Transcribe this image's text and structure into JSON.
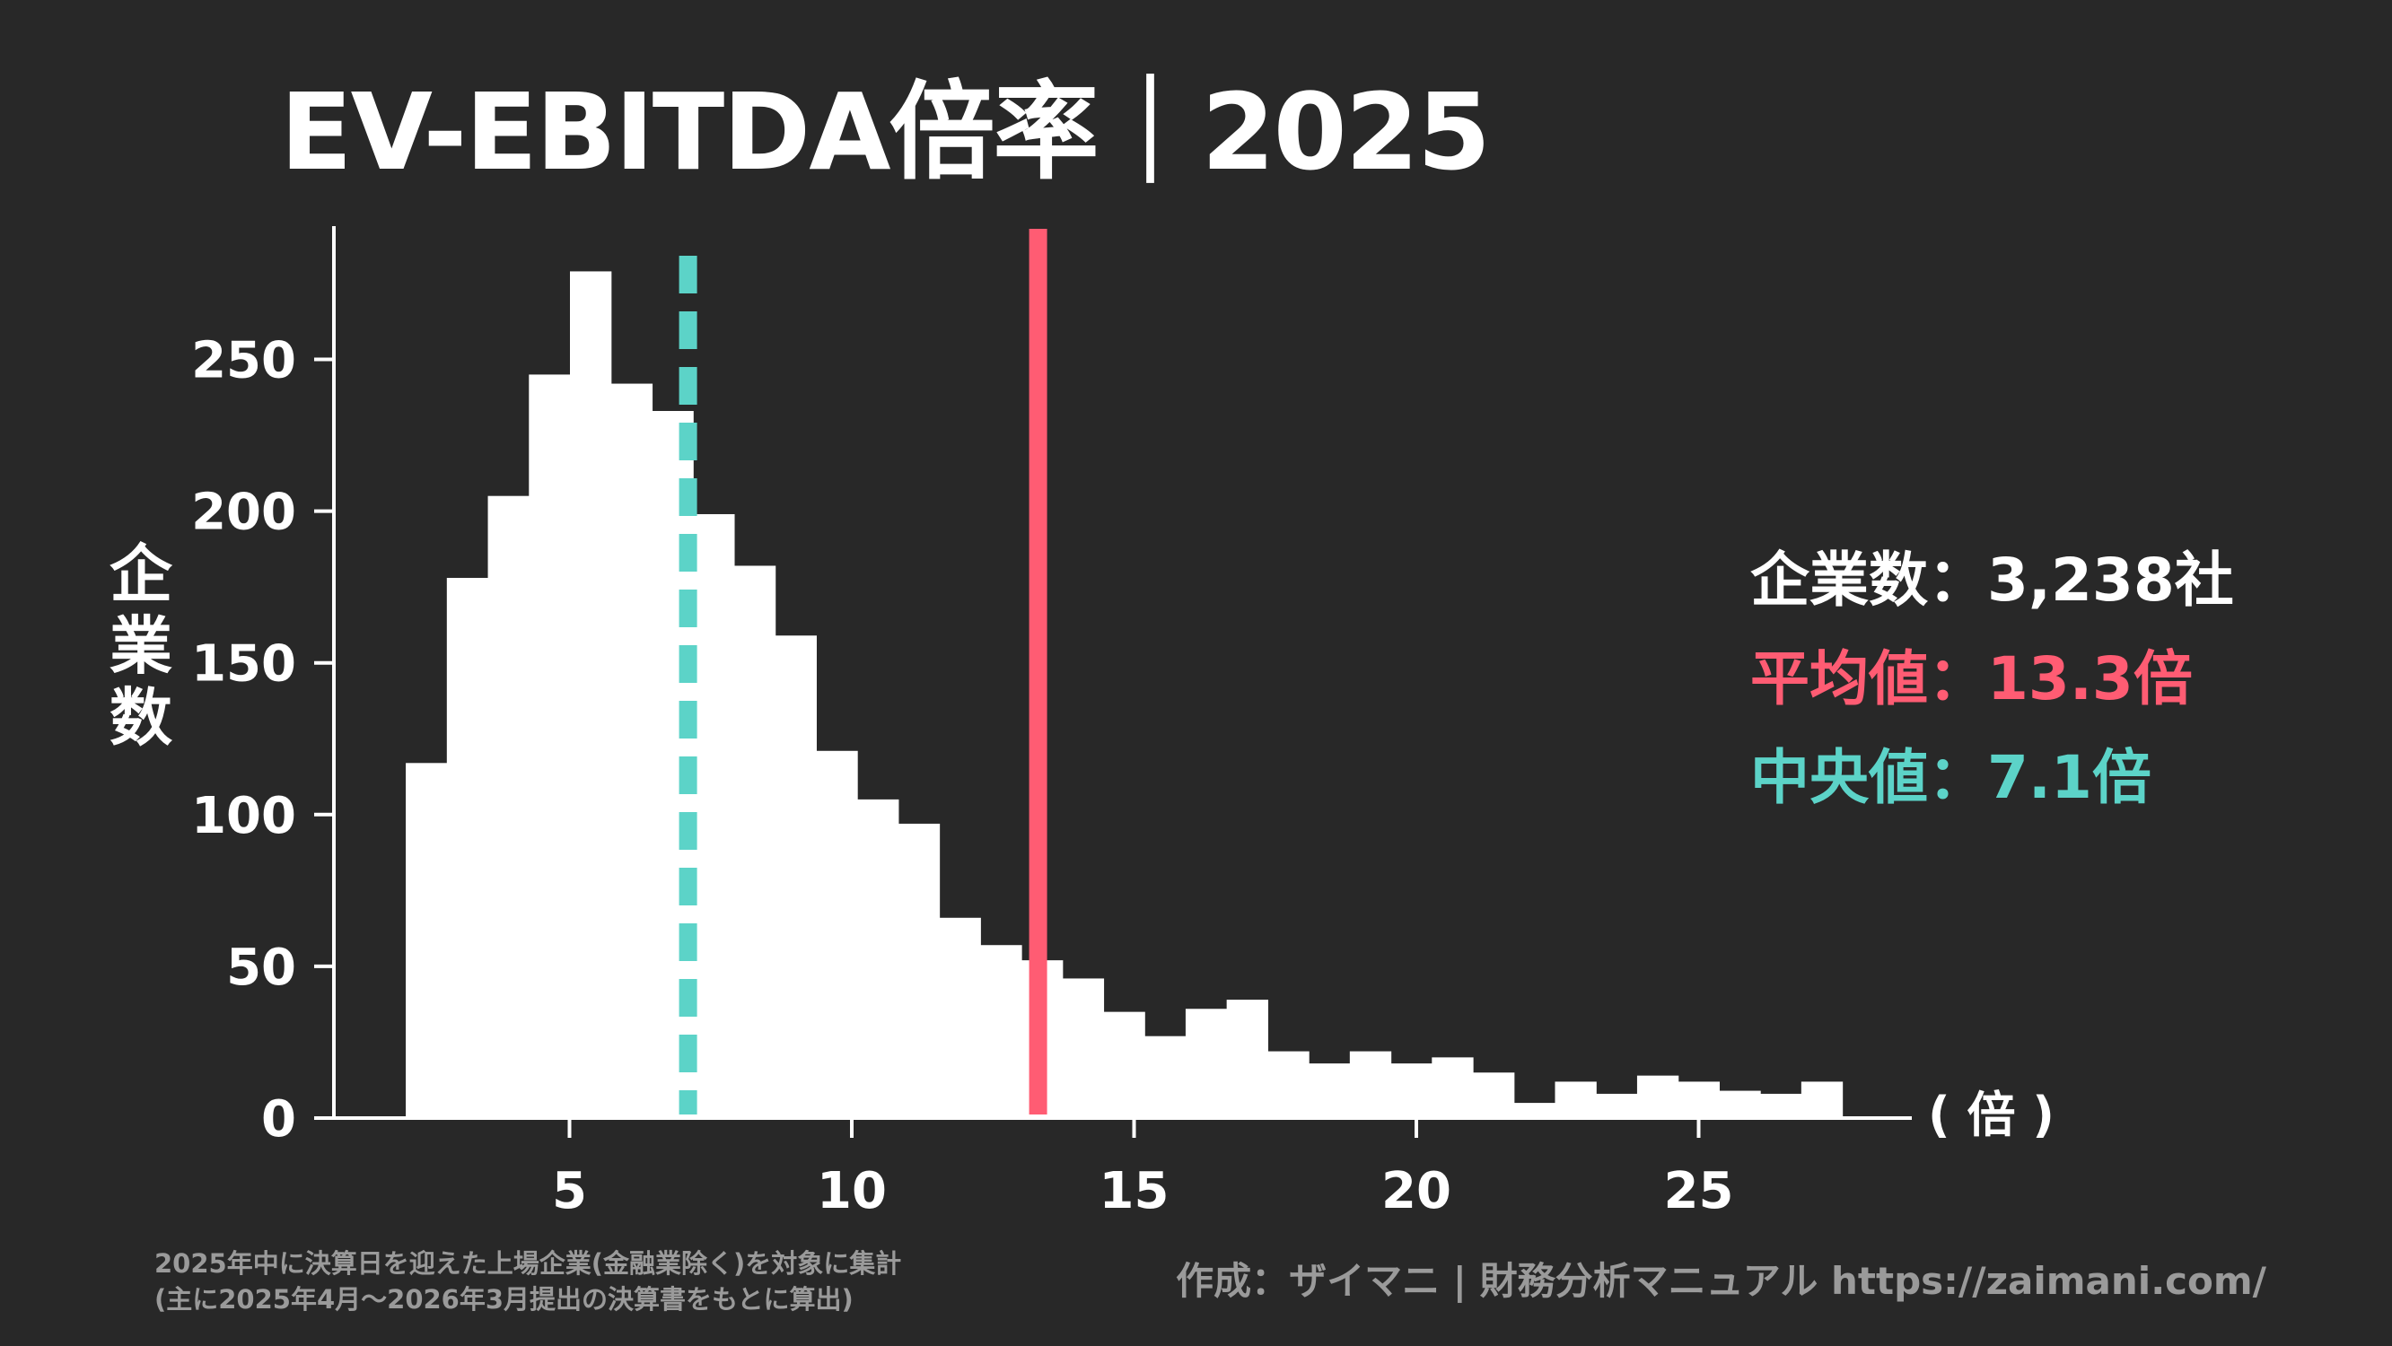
{
  "title": "EV-EBITDA倍率｜2025",
  "y_axis_label": [
    "企",
    "業",
    "数"
  ],
  "x_unit_label": "( 倍 )",
  "stats": {
    "count_label": "企業数",
    "count_value": "3,238社",
    "mean_label": "平均値",
    "mean_value": "13.3倍",
    "median_label": "中央値",
    "median_value": "7.1倍",
    "separator": "："
  },
  "footnote": {
    "line1": "2025年中に決算日を迎えた上場企業(金融業除く)を対象に集計",
    "line2": "(主に2025年4月～2026年3月提出の決算書をもとに算出)"
  },
  "credit": "作成：ザイマニ | 財務分析マニュアル https://zaimani.com/",
  "colors": {
    "background": "#282828",
    "bars": "#ffffff",
    "mean_line": "#ff5c73",
    "median_line": "#5cd3c8",
    "footnote": "#9a9a9a"
  },
  "chart_data": {
    "type": "bar",
    "subtype": "histogram",
    "title": "EV-EBITDA倍率｜2025",
    "xlabel": "倍",
    "ylabel": "企業数",
    "xlim": [
      0,
      29
    ],
    "ylim": [
      0,
      290
    ],
    "x_ticks": [
      5,
      10,
      15,
      20,
      25
    ],
    "y_ticks": [
      0,
      50,
      100,
      150,
      200,
      250
    ],
    "bin_start": 2.1,
    "bin_width": 0.727,
    "values": [
      117,
      178,
      205,
      245,
      279,
      242,
      233,
      199,
      182,
      159,
      121,
      105,
      97,
      66,
      57,
      52,
      46,
      35,
      27,
      36,
      39,
      22,
      18,
      22,
      18,
      20,
      15,
      5,
      12,
      8,
      14,
      12,
      9,
      8,
      12
    ],
    "annotations": [
      {
        "type": "vline",
        "x": 13.3,
        "label": "平均値",
        "color": "#ff5c73",
        "style": "solid"
      },
      {
        "type": "vline",
        "x": 7.1,
        "label": "中央値",
        "color": "#5cd3c8",
        "style": "dashed"
      }
    ],
    "total_count": 3238,
    "grid": false,
    "legend": "none"
  }
}
